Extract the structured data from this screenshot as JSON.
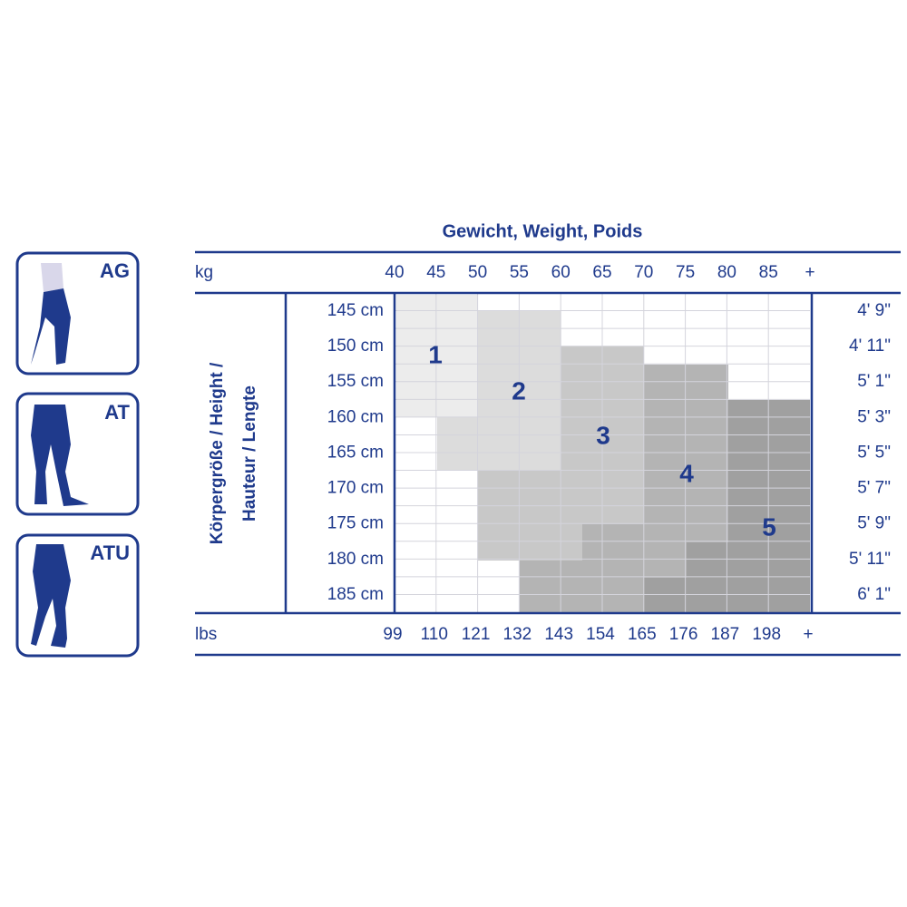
{
  "icons": [
    {
      "label": "AG"
    },
    {
      "label": "AT"
    },
    {
      "label": "ATU"
    }
  ],
  "chart": {
    "title": "Gewicht, Weight, Poids",
    "kg_label": "kg",
    "kg_ticks": [
      "40",
      "45",
      "50",
      "55",
      "60",
      "65",
      "70",
      "75",
      "80",
      "85",
      "+"
    ],
    "lbs_label": "lbs",
    "lbs_ticks": [
      "99",
      "110",
      "121",
      "132",
      "143",
      "154",
      "165",
      "176",
      "187",
      "198",
      "+"
    ],
    "y_title": [
      "Körpergröße / Height /",
      "Hauteur / Lengte"
    ],
    "heights_cm": [
      "145 cm",
      "150 cm",
      "155 cm",
      "160 cm",
      "165 cm",
      "170 cm",
      "175 cm",
      "180 cm",
      "185 cm"
    ],
    "heights_ft": [
      "4' 9\"",
      "4' 11\"",
      "5' 1\"",
      "5' 3\"",
      "5' 5\"",
      "5' 7\"",
      "5' 9\"",
      "5' 11\"",
      "6' 1\""
    ],
    "sizes": [
      "1",
      "2",
      "3",
      "4",
      "5"
    ]
  }
}
